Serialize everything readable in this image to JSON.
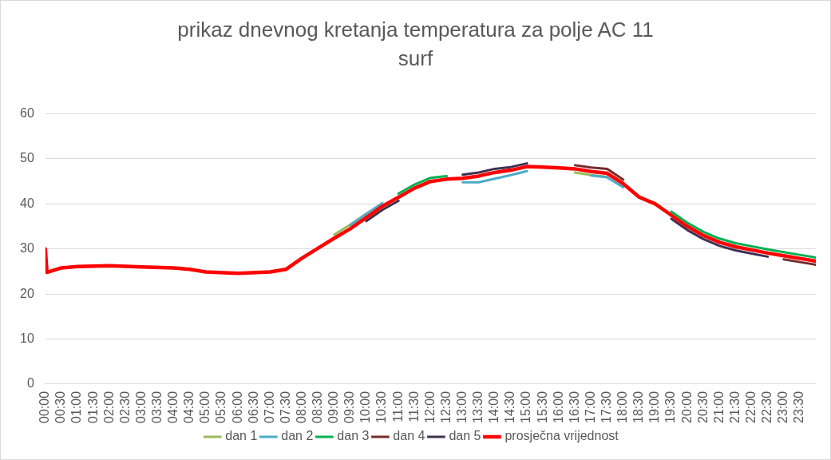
{
  "chart_data": {
    "type": "line",
    "title": "prikaz dnevnog kretanja temperatura za polje AC 11 surf",
    "x": [
      0,
      0.05,
      0.5,
      1,
      2,
      3,
      4,
      4.5,
      5,
      6,
      7,
      7.5,
      8,
      8.5,
      9,
      9.5,
      10,
      10.5,
      11,
      11.5,
      12,
      12.5,
      13,
      13.5,
      14,
      14.5,
      15,
      15.5,
      16,
      16.5,
      17,
      17.5,
      18,
      18.5,
      19,
      19.5,
      20,
      20.5,
      21,
      21.5,
      22,
      22.5,
      23,
      23.5,
      24
    ],
    "series": [
      {
        "name": "dan 1",
        "color": "#9bbb59",
        "values": [
          null,
          null,
          null,
          null,
          null,
          null,
          null,
          null,
          null,
          null,
          null,
          null,
          null,
          null,
          33.2,
          35.4,
          37.8,
          null,
          null,
          null,
          null,
          null,
          null,
          null,
          null,
          null,
          null,
          null,
          null,
          47,
          46.4,
          46,
          null,
          null,
          null,
          null,
          null,
          null,
          null,
          null,
          null,
          null,
          null,
          null,
          null
        ]
      },
      {
        "name": "dan 2",
        "color": "#4bacc6",
        "values": [
          null,
          null,
          null,
          null,
          null,
          null,
          null,
          null,
          null,
          null,
          null,
          null,
          null,
          null,
          null,
          35.3,
          37.8,
          40.2,
          null,
          null,
          null,
          null,
          44.8,
          44.8,
          45.6,
          46.4,
          47.3,
          null,
          null,
          null,
          46.3,
          45.9,
          43.7,
          null,
          null,
          null,
          null,
          null,
          null,
          null,
          null,
          null,
          null,
          null,
          null
        ]
      },
      {
        "name": "dan 3",
        "color": "#00b050",
        "values": [
          null,
          null,
          null,
          null,
          null,
          null,
          null,
          null,
          null,
          null,
          null,
          null,
          null,
          null,
          null,
          null,
          null,
          null,
          42.3,
          44.3,
          45.8,
          46.2,
          null,
          null,
          null,
          null,
          null,
          null,
          null,
          null,
          null,
          null,
          null,
          null,
          null,
          38.3,
          35.8,
          33.8,
          32.3,
          31.3,
          30.6,
          29.9,
          29.3,
          28.7,
          28.1
        ]
      },
      {
        "name": "dan 4",
        "color": "#772c2a",
        "values": [
          null,
          null,
          null,
          null,
          null,
          null,
          null,
          null,
          null,
          null,
          null,
          null,
          null,
          null,
          null,
          null,
          null,
          null,
          null,
          null,
          null,
          null,
          null,
          null,
          null,
          null,
          null,
          null,
          null,
          48.6,
          48.1,
          47.8,
          45.4,
          null,
          null,
          null,
          null,
          null,
          null,
          null,
          null,
          null,
          27.7,
          27.1,
          26.5
        ]
      },
      {
        "name": "dan 5",
        "color": "#403152",
        "values": [
          null,
          null,
          null,
          null,
          null,
          null,
          null,
          null,
          null,
          null,
          null,
          null,
          null,
          null,
          null,
          null,
          36.2,
          38.7,
          40.7,
          null,
          null,
          null,
          46.5,
          47,
          47.8,
          48.2,
          49,
          null,
          null,
          null,
          null,
          null,
          null,
          null,
          null,
          36.7,
          34.2,
          32.2,
          30.7,
          29.7,
          29,
          28.3,
          null,
          null,
          null
        ]
      },
      {
        "name": "prosječna vrijednost",
        "color": "#ff0000",
        "values": [
          30,
          24.8,
          25.8,
          26.1,
          26.3,
          26,
          25.8,
          25.5,
          24.9,
          24.6,
          24.9,
          25.5,
          28,
          30.2,
          32.4,
          34.5,
          37,
          39.5,
          41.5,
          43.5,
          45,
          45.5,
          45.7,
          46.2,
          47,
          47.5,
          48.3,
          48.2,
          48,
          47.8,
          47.2,
          46.8,
          44.5,
          41.5,
          40,
          37.5,
          35,
          33,
          31.5,
          30.5,
          29.8,
          29.1,
          28.5,
          27.9,
          27.3
        ]
      }
    ],
    "xlim": [
      0,
      24
    ],
    "xticks": [
      {
        "value": 0,
        "label": "00:00"
      },
      {
        "value": 0.5,
        "label": "00:30"
      },
      {
        "value": 1,
        "label": "01:00"
      },
      {
        "value": 1.5,
        "label": "01:30"
      },
      {
        "value": 2,
        "label": "02:00"
      },
      {
        "value": 2.5,
        "label": "02:30"
      },
      {
        "value": 3,
        "label": "03:00"
      },
      {
        "value": 3.5,
        "label": "03:30"
      },
      {
        "value": 4,
        "label": "04:00"
      },
      {
        "value": 4.5,
        "label": "04:30"
      },
      {
        "value": 5,
        "label": "05:00"
      },
      {
        "value": 5.5,
        "label": "05:30"
      },
      {
        "value": 6,
        "label": "06:00"
      },
      {
        "value": 6.5,
        "label": "06:30"
      },
      {
        "value": 7,
        "label": "07:00"
      },
      {
        "value": 7.5,
        "label": "07:30"
      },
      {
        "value": 8,
        "label": "08:00"
      },
      {
        "value": 8.5,
        "label": "08:30"
      },
      {
        "value": 9,
        "label": "09:00"
      },
      {
        "value": 9.5,
        "label": "09:30"
      },
      {
        "value": 10,
        "label": "10:00"
      },
      {
        "value": 10.5,
        "label": "10:30"
      },
      {
        "value": 11,
        "label": "11:00"
      },
      {
        "value": 11.5,
        "label": "11:30"
      },
      {
        "value": 12,
        "label": "12:00"
      },
      {
        "value": 12.5,
        "label": "12:30"
      },
      {
        "value": 13,
        "label": "13:00"
      },
      {
        "value": 13.5,
        "label": "13:30"
      },
      {
        "value": 14,
        "label": "14:00"
      },
      {
        "value": 14.5,
        "label": "14:30"
      },
      {
        "value": 15,
        "label": "15:00"
      },
      {
        "value": 15.5,
        "label": "15:30"
      },
      {
        "value": 16,
        "label": "16:00"
      },
      {
        "value": 16.5,
        "label": "16:30"
      },
      {
        "value": 17,
        "label": "17:00"
      },
      {
        "value": 17.5,
        "label": "17:30"
      },
      {
        "value": 18,
        "label": "18:00"
      },
      {
        "value": 18.5,
        "label": "18:30"
      },
      {
        "value": 19,
        "label": "19:00"
      },
      {
        "value": 19.5,
        "label": "19:30"
      },
      {
        "value": 20,
        "label": "20:00"
      },
      {
        "value": 20.5,
        "label": "20:30"
      },
      {
        "value": 21,
        "label": "21:00"
      },
      {
        "value": 21.5,
        "label": "21:30"
      },
      {
        "value": 22,
        "label": "22:00"
      },
      {
        "value": 22.5,
        "label": "22:30"
      },
      {
        "value": 23,
        "label": "23:00"
      },
      {
        "value": 23.5,
        "label": "23:30"
      }
    ],
    "ylim": [
      0,
      60
    ],
    "yticks": [
      0,
      10,
      20,
      30,
      40,
      50,
      60
    ],
    "grid": "y",
    "legend": "bottom",
    "marker": "none",
    "line_style": "solid"
  }
}
